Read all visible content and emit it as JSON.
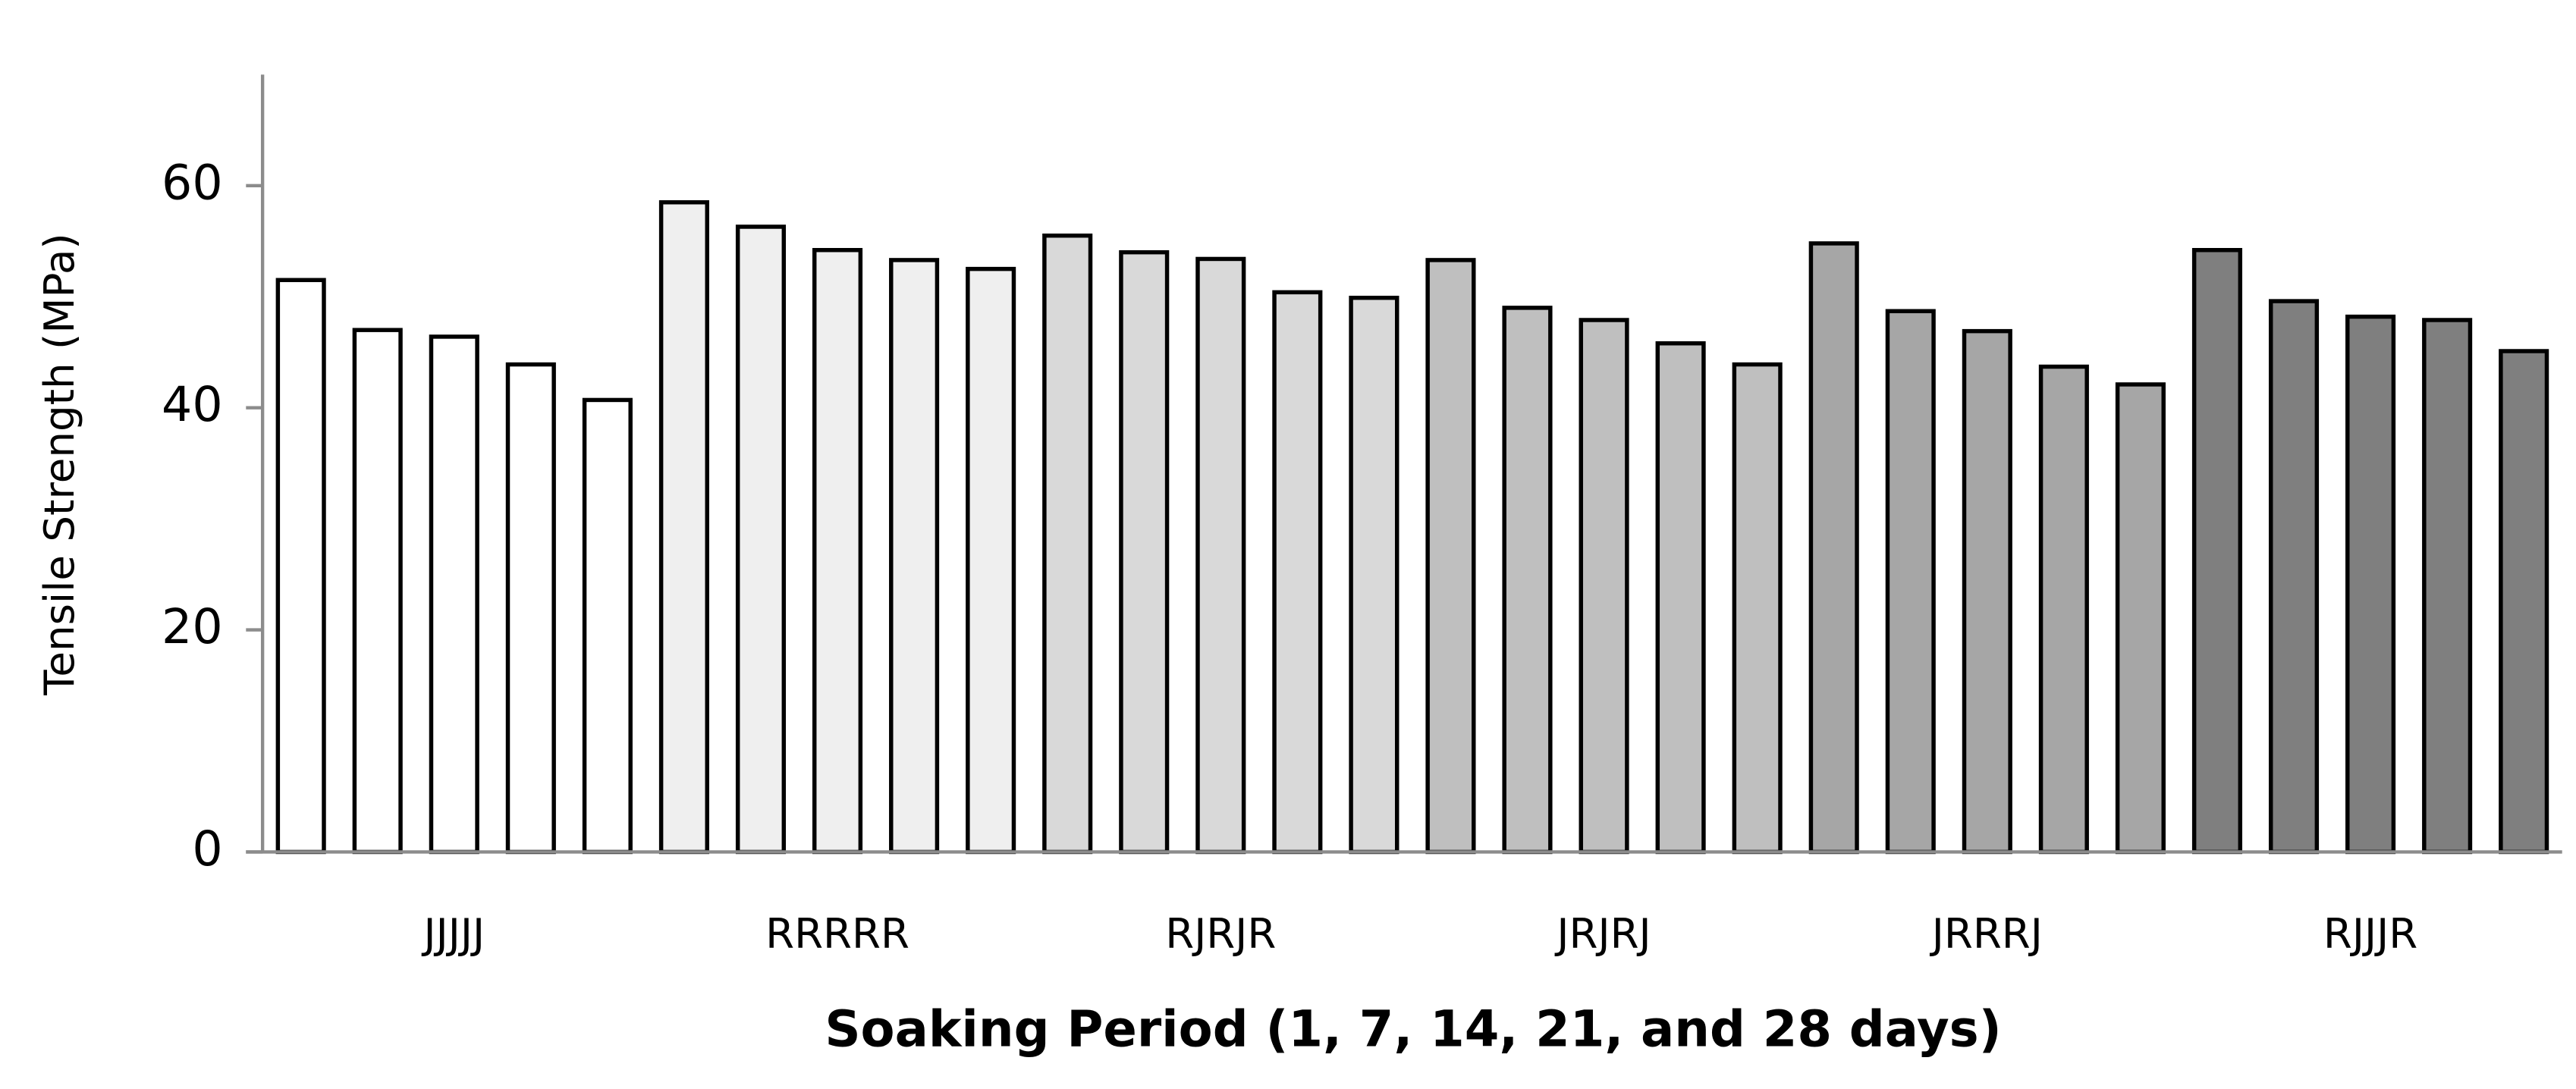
{
  "chart_data": {
    "type": "bar",
    "x_label": "Soaking Period (1, 7, 14, 21, and 28 days)",
    "y_label": "Tensile Strength (MPa)",
    "series": [
      {
        "name": "JJJJJ",
        "color": "#ffffff",
        "values": [
          51.5,
          47.0,
          46.4,
          43.9,
          40.7
        ]
      },
      {
        "name": "RRRRR",
        "color": "#efefef",
        "values": [
          58.5,
          56.3,
          54.2,
          53.3,
          52.5
        ]
      },
      {
        "name": "RJRJR",
        "color": "#d9d9d9",
        "values": [
          55.5,
          54.0,
          53.4,
          50.4,
          49.9
        ]
      },
      {
        "name": "JRJRJ",
        "color": "#bfbfbf",
        "values": [
          53.3,
          49.0,
          47.9,
          45.8,
          43.9
        ]
      },
      {
        "name": "JRRRJ",
        "color": "#a6a6a6",
        "values": [
          54.8,
          48.7,
          46.9,
          43.7,
          42.1
        ]
      },
      {
        "name": "RJJJR",
        "color": "#7f7f7f",
        "values": [
          54.2,
          49.6,
          48.2,
          47.9,
          45.1
        ]
      }
    ],
    "ylim": [
      0,
      70
    ],
    "yticks": [
      0,
      20,
      40,
      60
    ],
    "grid": false
  }
}
